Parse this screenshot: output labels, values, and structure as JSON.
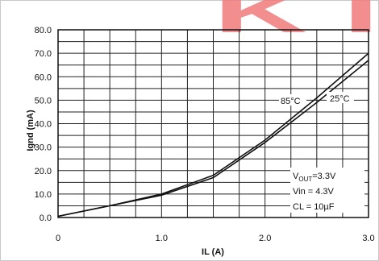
{
  "chart_data": {
    "type": "line",
    "xlabel": "IL (A)",
    "ylabel": "Ignd (mA)",
    "xlim": [
      0,
      3.0
    ],
    "ylim": [
      0,
      80
    ],
    "x_ticks": [
      "0",
      "1.0",
      "2.0",
      "3.0"
    ],
    "y_ticks": [
      "0.0",
      "10.0",
      "20.0",
      "30.0",
      "40.0",
      "50.0",
      "60.0",
      "70.0",
      "80.0"
    ],
    "grid": true,
    "series": [
      {
        "name": "85°C",
        "x": [
          0,
          0.5,
          1.0,
          1.5,
          2.0,
          2.5,
          3.0
        ],
        "y": [
          0.5,
          5,
          10,
          18,
          33,
          51,
          70
        ]
      },
      {
        "name": "25°C",
        "x": [
          0,
          0.5,
          1.0,
          1.5,
          2.0,
          2.5,
          3.0
        ],
        "y": [
          0.5,
          5,
          9.5,
          17,
          32,
          49,
          67
        ]
      }
    ],
    "annotations": {
      "vout_main": "V",
      "vout_sub": "OUT",
      "vout_val": "=3.3V",
      "vin": "Vin = 4.3V",
      "cl": "CL = 10µF"
    },
    "watermark": "K I"
  }
}
